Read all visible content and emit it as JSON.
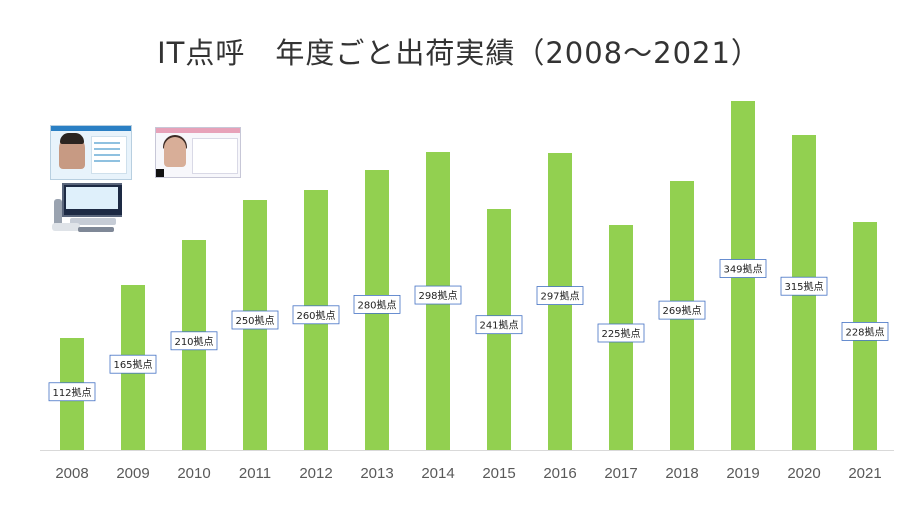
{
  "title": "IT点呼　年度ごと出荷実績（2008～2021）",
  "chart_data": {
    "type": "bar",
    "title": "IT点呼　年度ごと出荷実績（2008～2021）",
    "xlabel": "",
    "ylabel": "",
    "categories": [
      "2008",
      "2009",
      "2010",
      "2011",
      "2012",
      "2013",
      "2014",
      "2015",
      "2016",
      "2017",
      "2018",
      "2019",
      "2020",
      "2021"
    ],
    "values": [
      112,
      165,
      210,
      250,
      260,
      280,
      298,
      241,
      297,
      225,
      269,
      349,
      315,
      228
    ],
    "data_labels": [
      "112拠点",
      "165拠点",
      "210拠点",
      "250拠点",
      "260拠点",
      "280拠点",
      "298拠点",
      "241拠点",
      "297拠点",
      "225拠点",
      "269拠点",
      "349拠点",
      "315拠点",
      "228拠点"
    ],
    "ylim": [
      0,
      360
    ],
    "grid": false,
    "legend": "none",
    "bar_color": "#92d050"
  },
  "images": [
    {
      "icon": "operator-screen-male-thumbnail"
    },
    {
      "icon": "operator-screen-female-thumbnail"
    },
    {
      "icon": "alcohol-tester-device-thumbnail"
    }
  ]
}
